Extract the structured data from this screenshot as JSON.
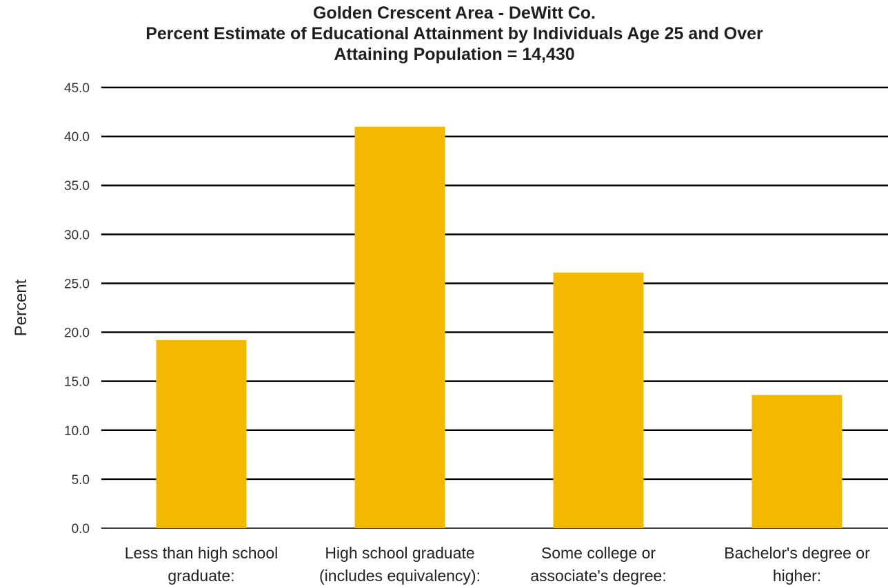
{
  "chart_data": {
    "type": "bar",
    "title_lines": [
      "Golden Crescent Area - DeWitt Co.",
      "Percent Estimate of Educational Attainment by Individuals Age 25 and Over",
      "Attaining Population = 14,430"
    ],
    "ylabel": "Percent",
    "xlabel": "",
    "ylim": [
      0,
      45
    ],
    "yticks": [
      "0.0",
      "5.0",
      "10.0",
      "15.0",
      "20.0",
      "25.0",
      "30.0",
      "35.0",
      "40.0",
      "45.0"
    ],
    "categories": [
      [
        "Less than high school",
        "graduate:"
      ],
      [
        "High school graduate",
        "(includes equivalency):"
      ],
      [
        "Some college or",
        "associate's degree:"
      ],
      [
        "Bachelor's degree or",
        "higher:"
      ]
    ],
    "values": [
      19.2,
      41.0,
      26.1,
      13.6
    ],
    "grid": true,
    "bar_color": "#F3B800",
    "grid_color": "#000000"
  }
}
